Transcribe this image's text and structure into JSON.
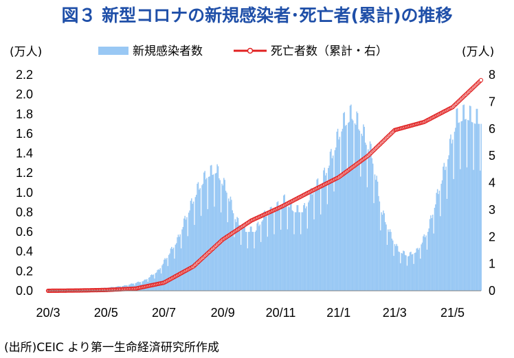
{
  "chart_data": {
    "type": "bar+line",
    "title": "図３ 新型コロナの新規感染者･死亡者(累計)の推移",
    "left_axis_unit": "(万人)",
    "right_axis_unit": "(万人)",
    "source_note": "(出所)CEIC より第一生命経済研究所作成",
    "x_tick_labels": [
      "20/3",
      "20/5",
      "20/7",
      "20/9",
      "20/11",
      "21/1",
      "21/3",
      "21/5"
    ],
    "left_ticks": [
      "0.0",
      "0.2",
      "0.4",
      "0.6",
      "0.8",
      "1.0",
      "1.2",
      "1.4",
      "1.6",
      "1.8",
      "2.0",
      "2.2"
    ],
    "right_ticks": [
      "0",
      "1",
      "2",
      "3",
      "4",
      "5",
      "6",
      "7",
      "8"
    ],
    "ylim_left": [
      0,
      2.2
    ],
    "ylim_right": [
      0,
      8
    ],
    "grid": false,
    "legend_position": "top",
    "series": [
      {
        "name": "新規感染者数",
        "kind": "bar",
        "axis": "left",
        "color": "#99c8f4",
        "points": [
          [
            "2020-03-01",
            0.0
          ],
          [
            "2020-04-01",
            0.01
          ],
          [
            "2020-05-01",
            0.03
          ],
          [
            "2020-05-20",
            0.05
          ],
          [
            "2020-06-10",
            0.1
          ],
          [
            "2020-06-25",
            0.2
          ],
          [
            "2020-07-05",
            0.35
          ],
          [
            "2020-07-15",
            0.5
          ],
          [
            "2020-07-25",
            0.75
          ],
          [
            "2020-08-05",
            1.0
          ],
          [
            "2020-08-15",
            1.15
          ],
          [
            "2020-08-25",
            1.2
          ],
          [
            "2020-09-05",
            1.0
          ],
          [
            "2020-09-15",
            0.7
          ],
          [
            "2020-09-25",
            0.6
          ],
          [
            "2020-10-05",
            0.6
          ],
          [
            "2020-10-15",
            0.75
          ],
          [
            "2020-10-25",
            0.8
          ],
          [
            "2020-11-05",
            0.9
          ],
          [
            "2020-11-15",
            0.8
          ],
          [
            "2020-11-25",
            0.8
          ],
          [
            "2020-12-05",
            1.0
          ],
          [
            "2020-12-15",
            1.1
          ],
          [
            "2020-12-25",
            1.35
          ],
          [
            "2021-01-05",
            1.65
          ],
          [
            "2021-01-15",
            1.75
          ],
          [
            "2021-01-25",
            1.6
          ],
          [
            "2021-02-05",
            1.35
          ],
          [
            "2021-02-15",
            0.8
          ],
          [
            "2021-02-25",
            0.55
          ],
          [
            "2021-03-05",
            0.4
          ],
          [
            "2021-03-15",
            0.35
          ],
          [
            "2021-03-25",
            0.4
          ],
          [
            "2021-04-05",
            0.6
          ],
          [
            "2021-04-15",
            0.95
          ],
          [
            "2021-04-25",
            1.3
          ],
          [
            "2021-05-05",
            1.7
          ],
          [
            "2021-05-15",
            1.75
          ],
          [
            "2021-05-25",
            1.7
          ],
          [
            "2021-05-31",
            1.7
          ]
        ]
      },
      {
        "name": "死亡者数（累計・右）",
        "kind": "line",
        "axis": "right",
        "color": "#e02020",
        "points": [
          [
            "2020-03-01",
            0.0
          ],
          [
            "2020-04-01",
            0.01
          ],
          [
            "2020-05-01",
            0.03
          ],
          [
            "2020-06-01",
            0.08
          ],
          [
            "2020-07-01",
            0.3
          ],
          [
            "2020-08-01",
            0.9
          ],
          [
            "2020-09-01",
            1.9
          ],
          [
            "2020-10-01",
            2.6
          ],
          [
            "2020-11-01",
            3.1
          ],
          [
            "2020-12-01",
            3.65
          ],
          [
            "2021-01-01",
            4.2
          ],
          [
            "2021-02-01",
            5.0
          ],
          [
            "2021-03-01",
            5.95
          ],
          [
            "2021-04-01",
            6.25
          ],
          [
            "2021-05-01",
            6.8
          ],
          [
            "2021-05-31",
            7.8
          ]
        ]
      }
    ]
  }
}
